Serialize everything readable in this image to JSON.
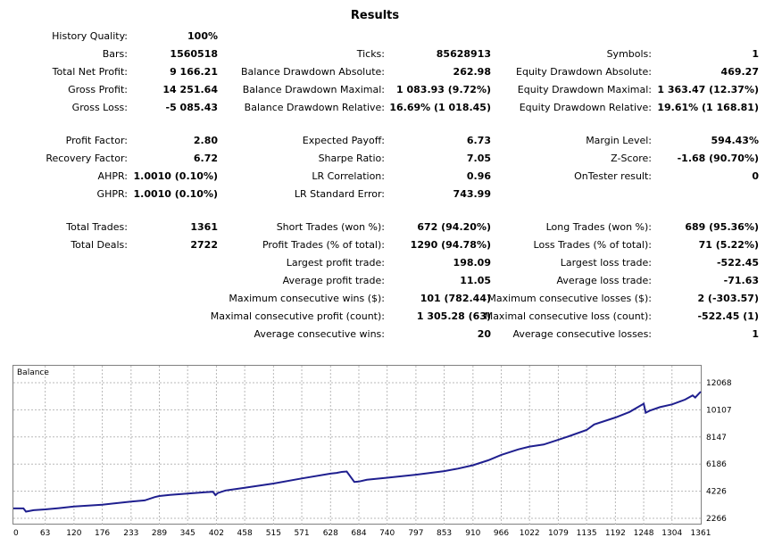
{
  "title": "Results",
  "col1": [
    {
      "label": "History Quality:",
      "value": "100%"
    },
    {
      "label": "Bars:",
      "value": "1560518"
    },
    {
      "label": "Total Net Profit:",
      "value": "9 166.21"
    },
    {
      "label": "Gross Profit:",
      "value": "14 251.64"
    },
    {
      "label": "Gross Loss:",
      "value": "-5 085.43"
    },
    {
      "label": "Profit Factor:",
      "value": "2.80"
    },
    {
      "label": "Recovery Factor:",
      "value": "6.72"
    },
    {
      "label": "AHPR:",
      "value": "1.0010 (0.10%)"
    },
    {
      "label": "GHPR:",
      "value": "1.0010 (0.10%)"
    },
    {
      "label": "Total Trades:",
      "value": "1361"
    },
    {
      "label": "Total Deals:",
      "value": "2722"
    }
  ],
  "col2": [
    {
      "label": "Ticks:",
      "value": "85628913"
    },
    {
      "label": "Balance Drawdown Absolute:",
      "value": "262.98"
    },
    {
      "label": "Balance Drawdown Maximal:",
      "value": "1 083.93 (9.72%)"
    },
    {
      "label": "Balance Drawdown Relative:",
      "value": "16.69% (1 018.45)"
    },
    {
      "label": "Expected Payoff:",
      "value": "6.73"
    },
    {
      "label": "Sharpe Ratio:",
      "value": "7.05"
    },
    {
      "label": "LR Correlation:",
      "value": "0.96"
    },
    {
      "label": "LR Standard Error:",
      "value": "743.99"
    },
    {
      "label": "Short Trades (won %):",
      "value": "672 (94.20%)"
    },
    {
      "label": "Profit Trades (% of total):",
      "value": "1290 (94.78%)"
    },
    {
      "label": "Largest profit trade:",
      "value": "198.09"
    },
    {
      "label": "Average profit trade:",
      "value": "11.05"
    },
    {
      "label": "Maximum consecutive wins ($):",
      "value": "101 (782.44)"
    },
    {
      "label": "Maximal consecutive profit (count):",
      "value": "1 305.28 (63)"
    },
    {
      "label": "Average consecutive wins:",
      "value": "20"
    }
  ],
  "col3": [
    {
      "label": "Symbols:",
      "value": "1"
    },
    {
      "label": "Equity Drawdown Absolute:",
      "value": "469.27"
    },
    {
      "label": "Equity Drawdown Maximal:",
      "value": "1 363.47 (12.37%)"
    },
    {
      "label": "Equity Drawdown Relative:",
      "value": "19.61% (1 168.81)"
    },
    {
      "label": "Margin Level:",
      "value": "594.43%"
    },
    {
      "label": "Z-Score:",
      "value": "-1.68 (90.70%)"
    },
    {
      "label": "OnTester result:",
      "value": "0"
    },
    {
      "label": "Long Trades (won %):",
      "value": "689 (95.36%)"
    },
    {
      "label": "Loss Trades (% of total):",
      "value": "71 (5.22%)"
    },
    {
      "label": "Largest loss trade:",
      "value": "-522.45"
    },
    {
      "label": "Average loss trade:",
      "value": "-71.63"
    },
    {
      "label": "Maximum consecutive losses ($):",
      "value": "2 (-303.57)"
    },
    {
      "label": "Maximal consecutive loss (count):",
      "value": "-522.45 (1)"
    },
    {
      "label": "Average consecutive losses:",
      "value": "1"
    }
  ],
  "chart_data": {
    "type": "line",
    "legend": "Balance",
    "line_color": "#1f1f8f",
    "grid": true,
    "x_ticks": [
      "0",
      "63",
      "120",
      "176",
      "233",
      "289",
      "345",
      "402",
      "458",
      "515",
      "571",
      "628",
      "684",
      "740",
      "797",
      "853",
      "910",
      "966",
      "1022",
      "1079",
      "1135",
      "1192",
      "1248",
      "1304",
      "1361"
    ],
    "y_ticks": [
      "12068",
      "10107",
      "8147",
      "6186",
      "4226",
      "2266"
    ],
    "xlim": [
      0,
      1361
    ],
    "ylim": [
      2266,
      12068
    ],
    "series": [
      {
        "name": "Balance",
        "x": [
          0,
          20,
          25,
          40,
          63,
          90,
          120,
          176,
          233,
          260,
          280,
          289,
          310,
          345,
          380,
          395,
          400,
          405,
          420,
          458,
          515,
          571,
          628,
          640,
          650,
          660,
          675,
          684,
          700,
          740,
          797,
          853,
          880,
          910,
          940,
          966,
          1000,
          1022,
          1050,
          1079,
          1100,
          1135,
          1150,
          1192,
          1220,
          1248,
          1252,
          1260,
          1280,
          1304,
          1330,
          1345,
          1350,
          1361
        ],
        "y": [
          2980,
          2980,
          2750,
          2850,
          2910,
          3000,
          3120,
          3250,
          3480,
          3560,
          3800,
          3880,
          3960,
          4050,
          4150,
          4190,
          3950,
          4100,
          4280,
          4480,
          4780,
          5150,
          5500,
          5550,
          5620,
          5650,
          4900,
          4920,
          5050,
          5200,
          5420,
          5680,
          5860,
          6100,
          6460,
          6850,
          7250,
          7450,
          7600,
          7950,
          8200,
          8650,
          9050,
          9550,
          9950,
          10550,
          9900,
          10050,
          10300,
          10500,
          10850,
          11150,
          11000,
          11420
        ]
      }
    ]
  }
}
